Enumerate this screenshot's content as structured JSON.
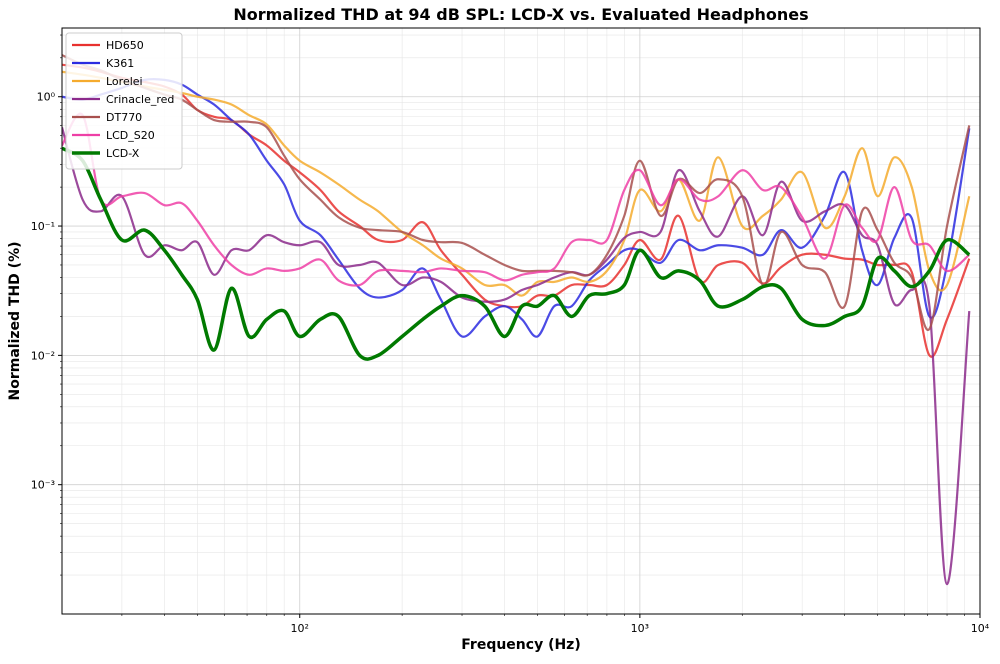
{
  "chart_data": {
    "type": "line",
    "title": "Normalized THD at 94 dB SPL: LCD-X vs. Evaluated Headphones",
    "xlabel": "Frequency (Hz)",
    "ylabel": "Normalized THD (%)",
    "xscale": "log",
    "yscale": "log",
    "grid": "both",
    "legend": "upper left",
    "xlim": [
      20,
      10000
    ],
    "ylim": [
      0.0001,
      3.4
    ],
    "xticks": [
      {
        "value": 100,
        "label": "10²"
      },
      {
        "value": 1000,
        "label": "10³"
      },
      {
        "value": 10000,
        "label": "10⁴"
      }
    ],
    "yticks": [
      {
        "value": 0.001,
        "label": "10⁻³"
      },
      {
        "value": 0.01,
        "label": "10⁻²"
      },
      {
        "value": 0.1,
        "label": "10⁻¹"
      },
      {
        "value": 1,
        "label": "10⁰"
      }
    ],
    "x": [
      20,
      23,
      26,
      30,
      35,
      40,
      45,
      50,
      56,
      63,
      71,
      80,
      90,
      100,
      115,
      130,
      150,
      170,
      200,
      230,
      260,
      300,
      350,
      400,
      450,
      500,
      560,
      630,
      710,
      800,
      900,
      1000,
      1150,
      1300,
      1500,
      1700,
      2000,
      2300,
      2600,
      3000,
      3500,
      4000,
      4500,
      5000,
      5600,
      6300,
      7100,
      8000,
      9300
    ],
    "series": [
      {
        "name": "HD650",
        "color": "#e8312f",
        "linewidth": 2.2,
        "values": [
          1.77,
          1.68,
          1.56,
          1.4,
          1.3,
          1.2,
          1.04,
          0.79,
          0.7,
          0.66,
          0.51,
          0.42,
          0.32,
          0.26,
          0.19,
          0.13,
          0.1,
          0.078,
          0.078,
          0.107,
          0.065,
          0.042,
          0.027,
          0.024,
          0.024,
          0.029,
          0.029,
          0.035,
          0.035,
          0.035,
          0.05,
          0.078,
          0.055,
          0.12,
          0.038,
          0.05,
          0.052,
          0.036,
          0.048,
          0.06,
          0.06,
          0.056,
          0.055,
          0.05,
          0.05,
          0.044,
          0.01,
          0.019,
          0.056
        ]
      },
      {
        "name": "K361",
        "color": "#2b2be0",
        "linewidth": 2.2,
        "values": [
          1.0,
          0.95,
          1.04,
          1.17,
          1.35,
          1.35,
          1.24,
          1.04,
          0.87,
          0.66,
          0.51,
          0.32,
          0.21,
          0.11,
          0.085,
          0.055,
          0.033,
          0.028,
          0.032,
          0.047,
          0.027,
          0.014,
          0.02,
          0.024,
          0.019,
          0.014,
          0.024,
          0.024,
          0.038,
          0.05,
          0.065,
          0.065,
          0.052,
          0.078,
          0.065,
          0.071,
          0.068,
          0.06,
          0.093,
          0.068,
          0.12,
          0.26,
          0.065,
          0.035,
          0.081,
          0.115,
          0.02,
          0.05,
          0.57
        ]
      },
      {
        "name": "Lorelei",
        "color": "#f5ab2e",
        "linewidth": 2.2,
        "values": [
          1.56,
          1.48,
          1.4,
          1.3,
          1.2,
          1.13,
          1.07,
          1.0,
          0.95,
          0.87,
          0.72,
          0.61,
          0.42,
          0.32,
          0.26,
          0.21,
          0.16,
          0.13,
          0.09,
          0.071,
          0.056,
          0.047,
          0.035,
          0.035,
          0.029,
          0.037,
          0.037,
          0.04,
          0.037,
          0.045,
          0.078,
          0.19,
          0.13,
          0.23,
          0.11,
          0.34,
          0.1,
          0.12,
          0.16,
          0.26,
          0.097,
          0.17,
          0.4,
          0.17,
          0.34,
          0.2,
          0.045,
          0.035,
          0.17
        ]
      },
      {
        "name": "Crinacle_red",
        "color": "#8b2a8b",
        "linewidth": 2.2,
        "values": [
          0.58,
          0.16,
          0.13,
          0.17,
          0.06,
          0.071,
          0.065,
          0.075,
          0.042,
          0.065,
          0.065,
          0.085,
          0.075,
          0.071,
          0.075,
          0.05,
          0.05,
          0.052,
          0.035,
          0.04,
          0.037,
          0.028,
          0.026,
          0.027,
          0.032,
          0.035,
          0.04,
          0.044,
          0.042,
          0.055,
          0.081,
          0.09,
          0.09,
          0.27,
          0.13,
          0.083,
          0.17,
          0.085,
          0.22,
          0.11,
          0.13,
          0.145,
          0.085,
          0.071,
          0.025,
          0.032,
          0.024,
          0.00017,
          0.022
        ]
      },
      {
        "name": "DT770",
        "color": "#a8504e",
        "linewidth": 2.2,
        "values": [
          2.1,
          1.77,
          1.6,
          1.35,
          1.17,
          1.04,
          0.95,
          0.79,
          0.66,
          0.64,
          0.64,
          0.58,
          0.35,
          0.23,
          0.16,
          0.117,
          0.097,
          0.093,
          0.09,
          0.078,
          0.075,
          0.074,
          0.06,
          0.05,
          0.045,
          0.045,
          0.045,
          0.044,
          0.042,
          0.06,
          0.12,
          0.32,
          0.12,
          0.23,
          0.18,
          0.23,
          0.17,
          0.035,
          0.09,
          0.05,
          0.044,
          0.024,
          0.13,
          0.093,
          0.052,
          0.04,
          0.016,
          0.1,
          0.6
        ]
      },
      {
        "name": "LCD_S20",
        "color": "#ee3fa6",
        "linewidth": 2.2,
        "values": [
          0.42,
          0.72,
          0.16,
          0.17,
          0.18,
          0.145,
          0.15,
          0.11,
          0.071,
          0.05,
          0.042,
          0.047,
          0.045,
          0.047,
          0.055,
          0.038,
          0.035,
          0.045,
          0.045,
          0.044,
          0.047,
          0.045,
          0.044,
          0.038,
          0.042,
          0.044,
          0.047,
          0.075,
          0.078,
          0.078,
          0.19,
          0.27,
          0.145,
          0.23,
          0.16,
          0.17,
          0.27,
          0.19,
          0.2,
          0.117,
          0.056,
          0.145,
          0.097,
          0.078,
          0.2,
          0.078,
          0.071,
          0.045,
          0.06
        ]
      },
      {
        "name": "LCD-X",
        "color": "#007a00",
        "linewidth": 3.5,
        "values": [
          0.4,
          0.32,
          0.16,
          0.078,
          0.093,
          0.065,
          0.042,
          0.027,
          0.011,
          0.033,
          0.014,
          0.019,
          0.022,
          0.014,
          0.019,
          0.02,
          0.01,
          0.01,
          0.014,
          0.019,
          0.024,
          0.029,
          0.024,
          0.014,
          0.024,
          0.024,
          0.029,
          0.02,
          0.029,
          0.03,
          0.035,
          0.065,
          0.04,
          0.045,
          0.038,
          0.024,
          0.027,
          0.034,
          0.033,
          0.019,
          0.017,
          0.02,
          0.024,
          0.056,
          0.045,
          0.034,
          0.045,
          0.078,
          0.06
        ]
      }
    ]
  }
}
